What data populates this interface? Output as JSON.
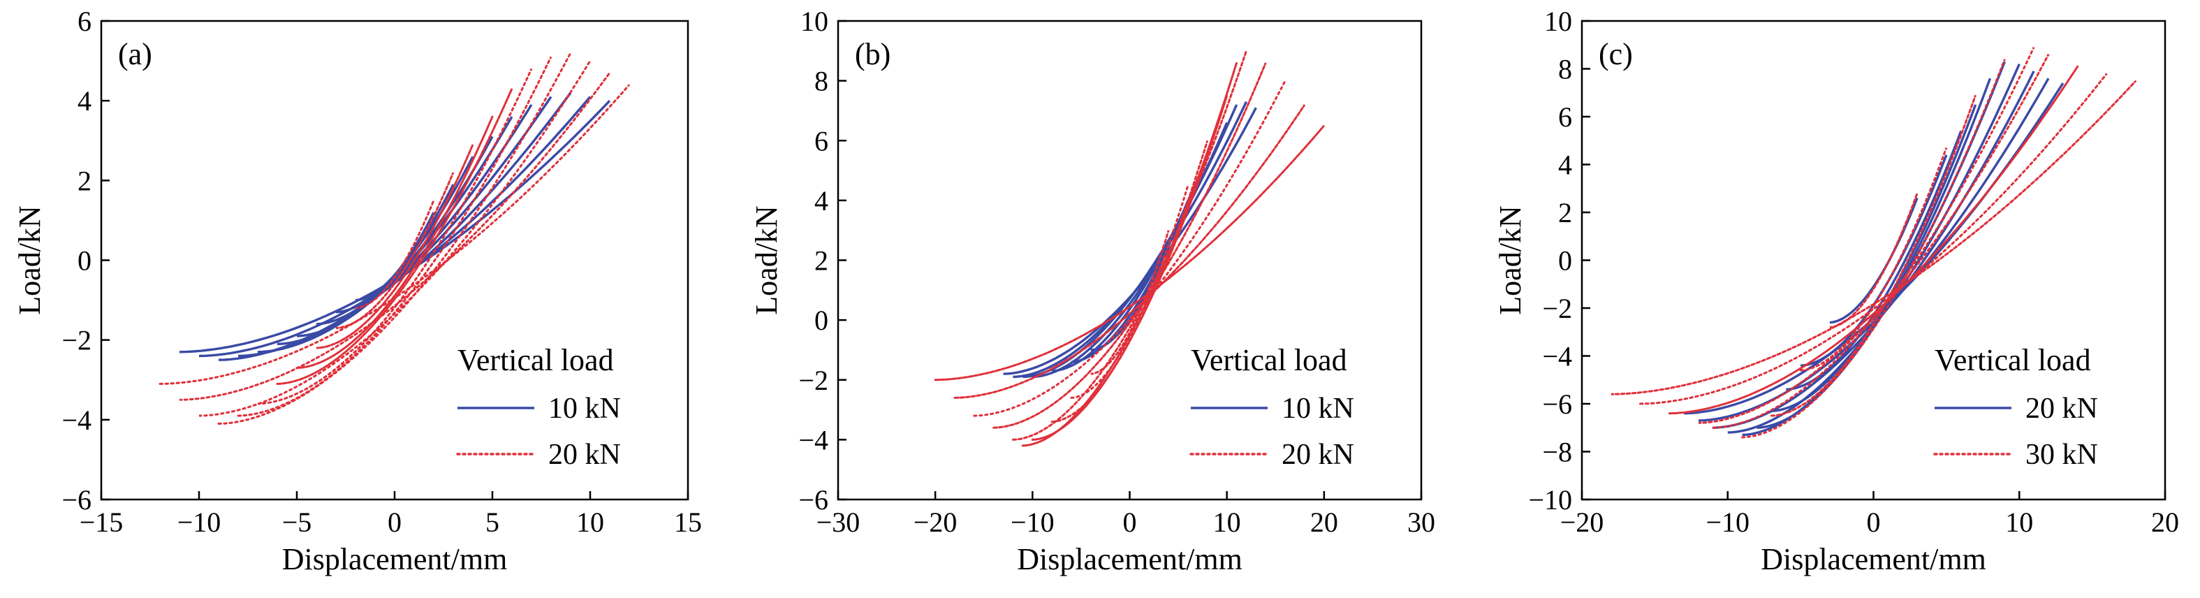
{
  "colors": {
    "series_solid": "#3a4aa6",
    "series_dotted": "#e0303a",
    "axis": "#000000"
  },
  "chart_data": [
    {
      "type": "line",
      "panel_label": "(a)",
      "xlabel": "Displacement/mm",
      "ylabel": "Load/kN",
      "xlim": [
        -15,
        15
      ],
      "ylim": [
        -6,
        6
      ],
      "xticks": [
        -15,
        -10,
        -5,
        0,
        5,
        10,
        15
      ],
      "yticks": [
        -6,
        -4,
        -2,
        0,
        2,
        4,
        6
      ],
      "xtick_labels": [
        "−15",
        "−10",
        "−5",
        "0",
        "5",
        "10",
        "15"
      ],
      "ytick_labels": [
        "−6",
        "−4",
        "−2",
        "0",
        "2",
        "4",
        "6"
      ],
      "legend_title": "Vertical load",
      "legend_position": "bottom-right",
      "series": [
        {
          "name": "10 kN",
          "style": "solid",
          "loops": [
            [
              2,
              1.2,
              -2,
              -1.0
            ],
            [
              3,
              1.9,
              -3,
              -1.3
            ],
            [
              4,
              2.6,
              -4,
              -1.6
            ],
            [
              5,
              3.1,
              -5,
              -1.9
            ],
            [
              6,
              3.6,
              -6,
              -2.1
            ],
            [
              7,
              3.9,
              -7,
              -2.3
            ],
            [
              8,
              4.1,
              -8,
              -2.4
            ],
            [
              9,
              4.2,
              -9,
              -2.5
            ],
            [
              10,
              4.1,
              -10,
              -2.4
            ],
            [
              11,
              4.0,
              -11,
              -2.3
            ]
          ]
        },
        {
          "name": "20 kN",
          "style": "dotted",
          "loops": [
            [
              2,
              1.5,
              -2,
              -1.2
            ],
            [
              3,
              2.2,
              -3,
              -1.7
            ],
            [
              4,
              2.9,
              -4,
              -2.2
            ],
            [
              5,
              3.6,
              -5,
              -2.7
            ],
            [
              6,
              4.3,
              -6,
              -3.1
            ],
            [
              7,
              4.8,
              -7,
              -3.6
            ],
            [
              8,
              5.1,
              -8,
              -3.9
            ],
            [
              9,
              5.2,
              -9,
              -4.1
            ],
            [
              10,
              5.0,
              -10,
              -3.9
            ],
            [
              11,
              4.7,
              -11,
              -3.5
            ],
            [
              12,
              4.4,
              -12,
              -3.1
            ]
          ]
        }
      ]
    },
    {
      "type": "line",
      "panel_label": "(b)",
      "xlabel": "Displacement/mm",
      "ylabel": "Load/kN",
      "xlim": [
        -30,
        30
      ],
      "ylim": [
        -6,
        10
      ],
      "xticks": [
        -30,
        -20,
        -10,
        0,
        10,
        20,
        30
      ],
      "yticks": [
        -6,
        -4,
        -2,
        0,
        2,
        4,
        6,
        8,
        10
      ],
      "xtick_labels": [
        "−30",
        "−20",
        "−10",
        "0",
        "10",
        "20",
        "30"
      ],
      "ytick_labels": [
        "−6",
        "−4",
        "−2",
        "0",
        "2",
        "4",
        "6",
        "8",
        "10"
      ],
      "legend_title": "Vertical load",
      "legend_position": "bottom-right",
      "series": [
        {
          "name": "10 kN",
          "style": "solid",
          "loops": [
            [
              4,
              2.5,
              -4,
              -1.0
            ],
            [
              6,
              4.0,
              -6,
              -1.4
            ],
            [
              8,
              5.5,
              -8,
              -1.7
            ],
            [
              10,
              6.6,
              -10,
              -1.9
            ],
            [
              11,
              7.2,
              -11,
              -1.9
            ],
            [
              12,
              7.3,
              -12,
              -1.9
            ],
            [
              13,
              7.1,
              -13,
              -1.8
            ]
          ]
        },
        {
          "name": "20 kN",
          "style": "dotted",
          "loops": [
            [
              4,
              3.0,
              -4,
              -1.8
            ],
            [
              6,
              4.5,
              -6,
              -2.6
            ],
            [
              8,
              6.0,
              -8,
              -3.4
            ],
            [
              10,
              7.5,
              -10,
              -4.0
            ],
            [
              11,
              8.6,
              -11,
              -4.2
            ],
            [
              12,
              9.0,
              -12,
              -4.0
            ],
            [
              14,
              8.6,
              -14,
              -3.6
            ],
            [
              16,
              8.0,
              -16,
              -3.2
            ],
            [
              18,
              7.2,
              -18,
              -2.6
            ],
            [
              20,
              6.5,
              -20,
              -2.0
            ]
          ]
        }
      ]
    },
    {
      "type": "line",
      "panel_label": "(c)",
      "xlabel": "Displacement/mm",
      "ylabel": "Load/kN",
      "xlim": [
        -20,
        20
      ],
      "ylim": [
        -10,
        10
      ],
      "xticks": [
        -20,
        -10,
        0,
        10,
        20
      ],
      "yticks": [
        -10,
        -8,
        -6,
        -4,
        -2,
        0,
        2,
        4,
        6,
        8,
        10
      ],
      "xtick_labels": [
        "−20",
        "−10",
        "0",
        "10",
        "20"
      ],
      "ytick_labels": [
        "−10",
        "−8",
        "−6",
        "−4",
        "−2",
        "0",
        "2",
        "4",
        "6",
        "8",
        "10"
      ],
      "legend_title": "Vertical load",
      "legend_position": "bottom-right",
      "series": [
        {
          "name": "20 kN",
          "style": "solid",
          "loops": [
            [
              3,
              2.6,
              -3,
              -2.6
            ],
            [
              5,
              4.4,
              -5,
              -4.4
            ],
            [
              6,
              5.4,
              -6,
              -5.4
            ],
            [
              7,
              6.5,
              -7,
              -6.3
            ],
            [
              8,
              7.6,
              -8,
              -7.0
            ],
            [
              9,
              8.3,
              -9,
              -7.3
            ],
            [
              10,
              8.2,
              -10,
              -7.2
            ],
            [
              11,
              7.9,
              -11,
              -7.0
            ],
            [
              12,
              7.6,
              -12,
              -6.7
            ],
            [
              13,
              7.4,
              -13,
              -6.4
            ]
          ]
        },
        {
          "name": "30 kN",
          "style": "dotted",
          "loops": [
            [
              3,
              2.8,
              -3,
              -2.8
            ],
            [
              5,
              4.7,
              -5,
              -4.6
            ],
            [
              7,
              6.9,
              -7,
              -6.5
            ],
            [
              9,
              8.4,
              -9,
              -7.4
            ],
            [
              11,
              8.9,
              -11,
              -7.0
            ],
            [
              12,
              8.6,
              -12,
              -6.8
            ],
            [
              14,
              8.1,
              -14,
              -6.4
            ],
            [
              16,
              7.8,
              -16,
              -6.0
            ],
            [
              18,
              7.5,
              -18,
              -5.6
            ]
          ]
        }
      ]
    }
  ]
}
